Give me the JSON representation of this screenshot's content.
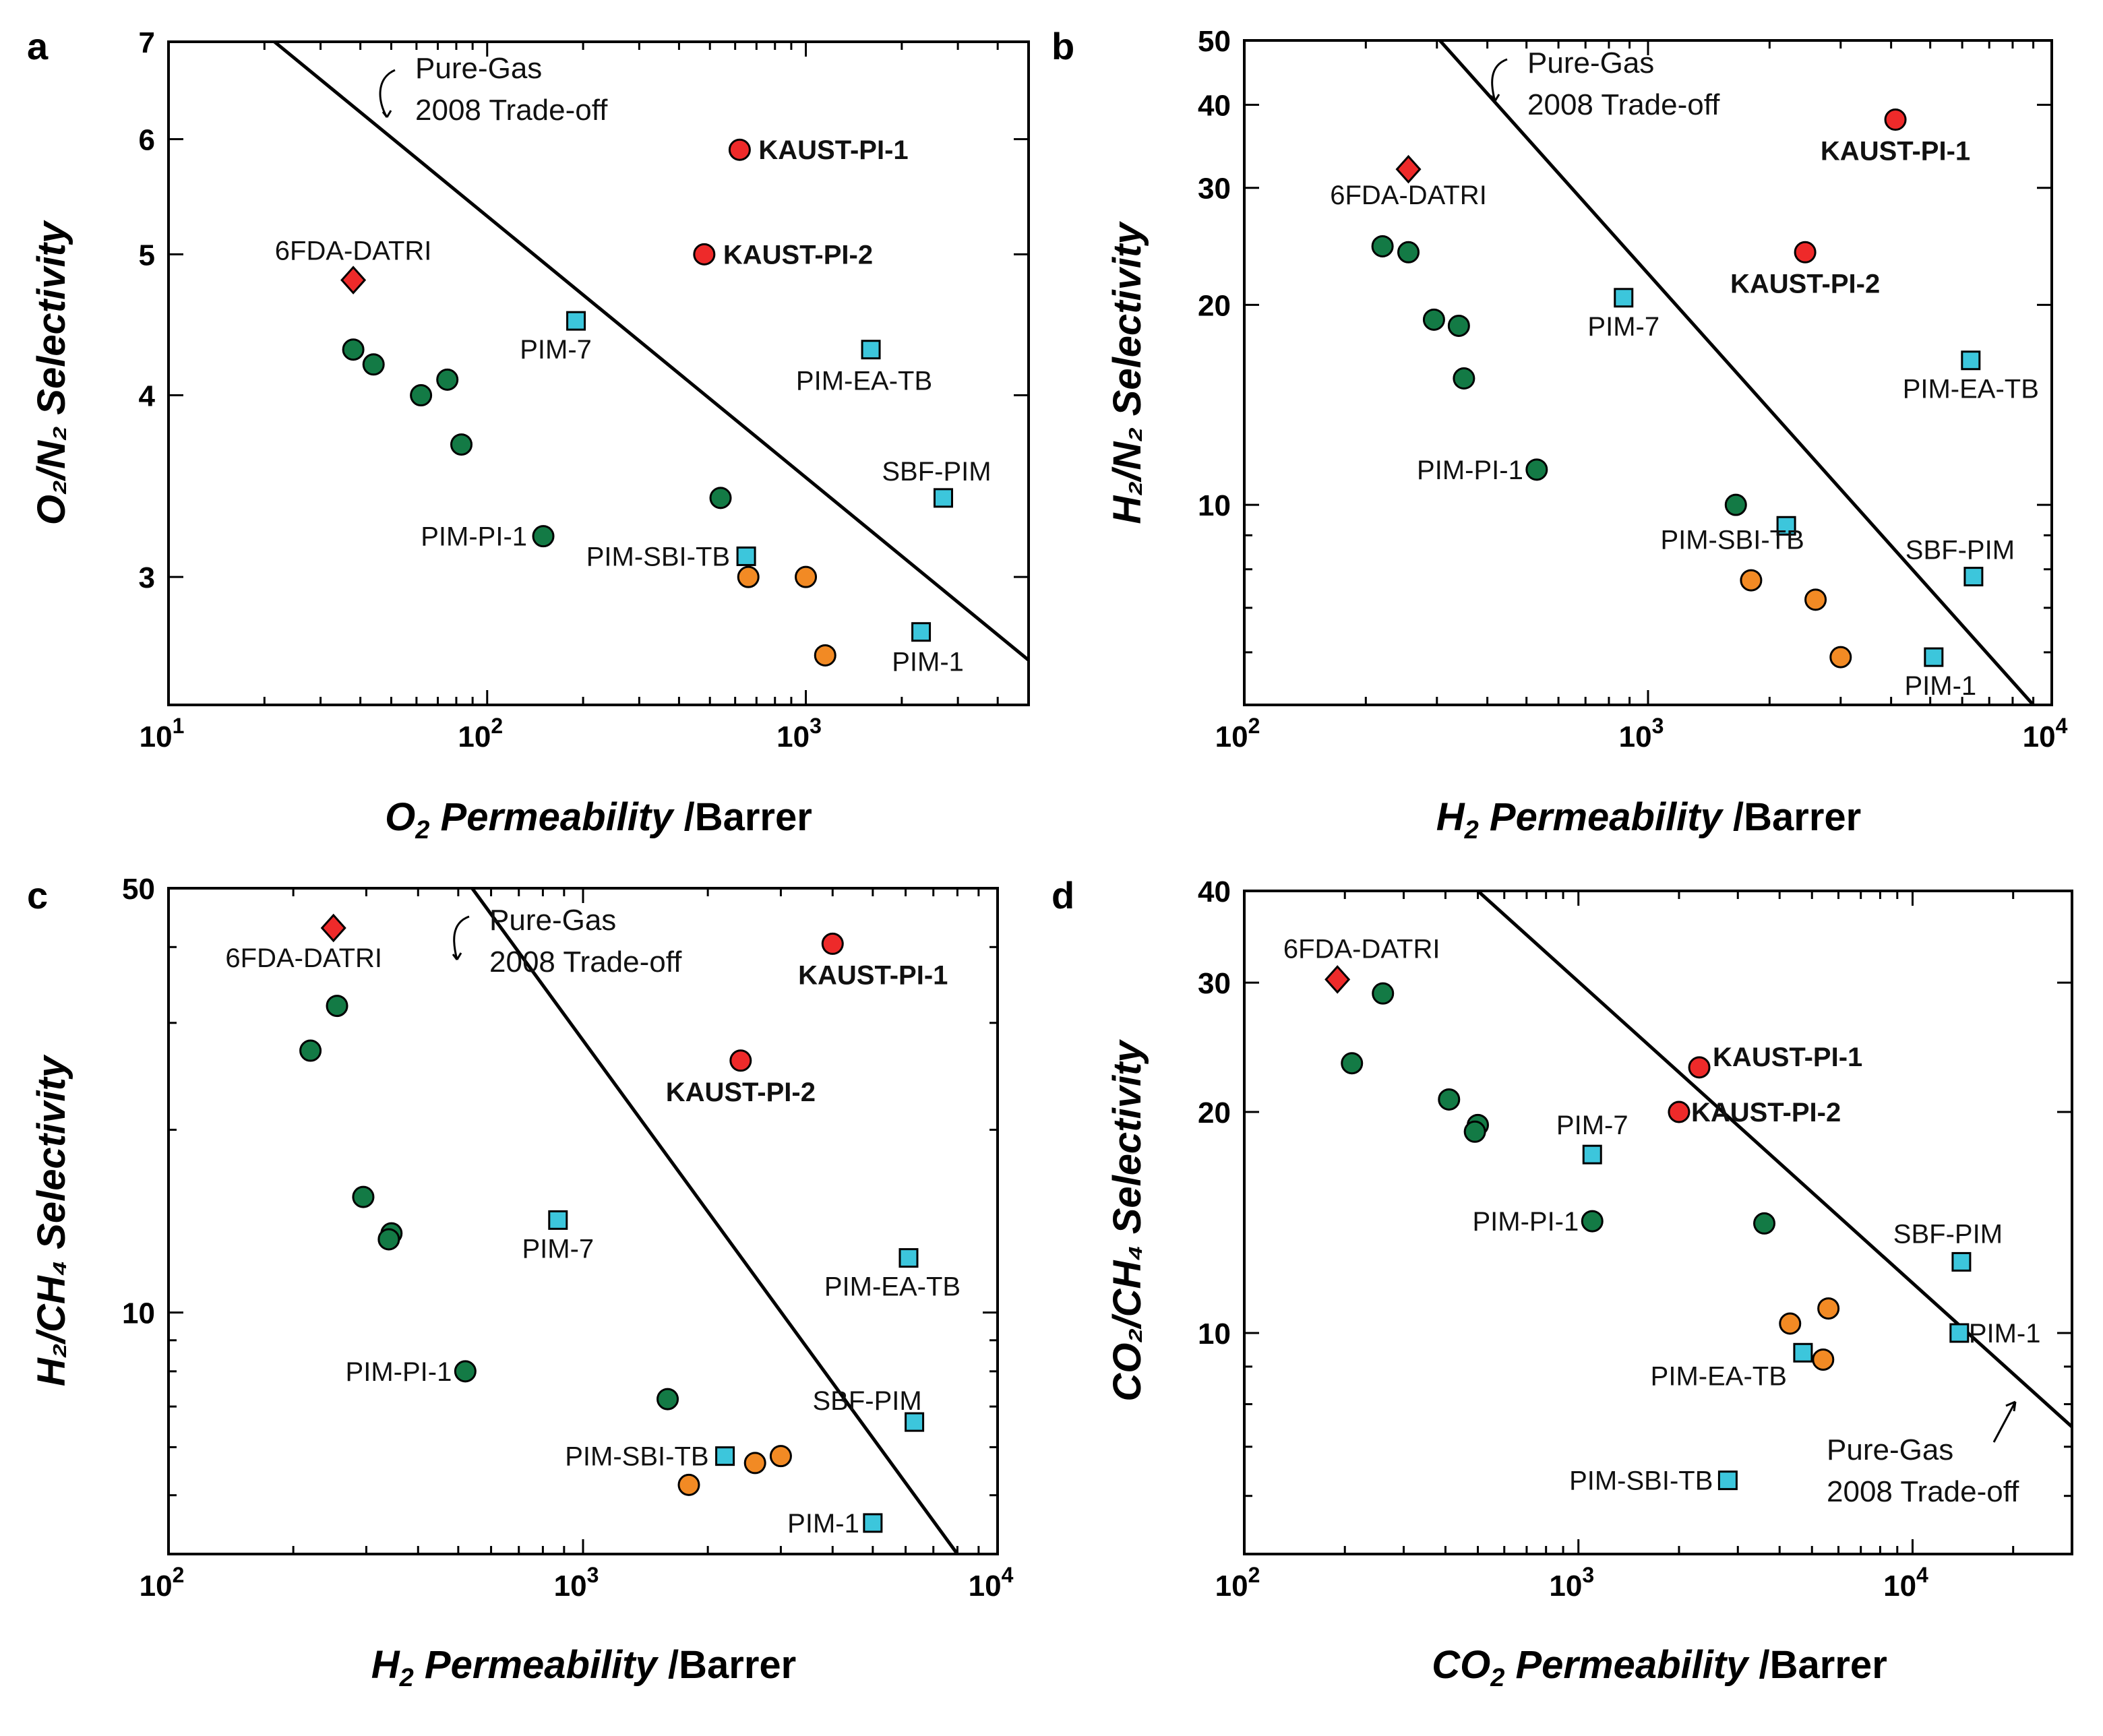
{
  "colors": {
    "kaust": "#ee2a2a",
    "datri": "#ee2a2a",
    "green": "#137a45",
    "cyan": "#3cc6dc",
    "orange": "#f28a24"
  },
  "chart_data": [
    {
      "panel": "a",
      "type": "scatter",
      "xlabel_main": "O",
      "xlabel_sub": "2",
      "xlabel_rest": " Permeability ",
      "xlabel_unit": "/Barrer",
      "ylabel": "O₂/N₂ Selectivity",
      "xscale": "log",
      "yscale": "log",
      "xlim": [
        10,
        5000
      ],
      "ylim": [
        2.45,
        7
      ],
      "xticks": [
        {
          "v": 10,
          "base": "10",
          "exp": "1"
        },
        {
          "v": 100,
          "base": "10",
          "exp": "2"
        },
        {
          "v": 1000,
          "base": "10",
          "exp": "3"
        }
      ],
      "yticks": [
        {
          "v": 3,
          "label": "3"
        },
        {
          "v": 4,
          "label": "4"
        },
        {
          "v": 5,
          "label": "5"
        },
        {
          "v": 6,
          "label": "6"
        },
        {
          "v": 7,
          "label": "7"
        }
      ],
      "tradeoff": [
        [
          21.5,
          7.0
        ],
        [
          5000,
          2.63
        ]
      ],
      "tradeoff_label": [
        "Pure-Gas",
        "2008 Trade-off"
      ],
      "points": [
        {
          "x": 620,
          "y": 5.9,
          "kind": "kaust",
          "label": "KAUST-PI-1",
          "bold": true
        },
        {
          "x": 480,
          "y": 5.0,
          "kind": "kaust",
          "label": "KAUST-PI-2",
          "bold": true
        },
        {
          "x": 38,
          "y": 4.8,
          "kind": "datri",
          "label": "6FDA-DATRI"
        },
        {
          "x": 190,
          "y": 4.5,
          "kind": "cyan",
          "label": "PIM-7"
        },
        {
          "x": 1600,
          "y": 4.3,
          "kind": "cyan",
          "label": "PIM-EA-TB"
        },
        {
          "x": 2700,
          "y": 3.4,
          "kind": "cyan",
          "label": "SBF-PIM"
        },
        {
          "x": 650,
          "y": 3.1,
          "kind": "cyan",
          "label": "PIM-SBI-TB"
        },
        {
          "x": 2300,
          "y": 2.75,
          "kind": "cyan",
          "label": "PIM-1"
        },
        {
          "x": 38,
          "y": 4.3,
          "kind": "green"
        },
        {
          "x": 44,
          "y": 4.2,
          "kind": "green"
        },
        {
          "x": 62,
          "y": 4.0,
          "kind": "green"
        },
        {
          "x": 75,
          "y": 4.1,
          "kind": "green"
        },
        {
          "x": 83,
          "y": 3.7,
          "kind": "green"
        },
        {
          "x": 150,
          "y": 3.2,
          "kind": "green",
          "label": "PIM-PI-1"
        },
        {
          "x": 540,
          "y": 3.4,
          "kind": "green"
        },
        {
          "x": 660,
          "y": 3.0,
          "kind": "orange"
        },
        {
          "x": 1000,
          "y": 3.0,
          "kind": "orange"
        },
        {
          "x": 1150,
          "y": 2.65,
          "kind": "orange"
        }
      ]
    },
    {
      "panel": "b",
      "type": "scatter",
      "xlabel_main": "H",
      "xlabel_sub": "2",
      "xlabel_rest": " Permeability ",
      "xlabel_unit": "/Barrer",
      "ylabel": "H₂/N₂ Selectivity",
      "xscale": "log",
      "yscale": "log",
      "xlim": [
        100,
        10000
      ],
      "ylim": [
        5.0,
        50
      ],
      "xticks": [
        {
          "v": 100,
          "base": "10",
          "exp": "2"
        },
        {
          "v": 1000,
          "base": "10",
          "exp": "3"
        },
        {
          "v": 10000,
          "base": "10",
          "exp": "4"
        }
      ],
      "yticks": [
        {
          "v": 10,
          "label": "10"
        },
        {
          "v": 20,
          "label": "20"
        },
        {
          "v": 30,
          "label": "30"
        },
        {
          "v": 40,
          "label": "40"
        },
        {
          "v": 50,
          "label": "50"
        }
      ],
      "tradeoff": [
        [
          305,
          50
        ],
        [
          9000,
          5.0
        ]
      ],
      "tradeoff_label": [
        "Pure-Gas",
        "2008 Trade-off"
      ],
      "points": [
        {
          "x": 4100,
          "y": 38,
          "kind": "kaust",
          "label": "KAUST-PI-1",
          "bold": true
        },
        {
          "x": 2450,
          "y": 24,
          "kind": "kaust",
          "label": "KAUST-PI-2",
          "bold": true
        },
        {
          "x": 255,
          "y": 32,
          "kind": "datri",
          "label": "6FDA-DATRI"
        },
        {
          "x": 870,
          "y": 20.5,
          "kind": "cyan",
          "label": "PIM-7"
        },
        {
          "x": 6300,
          "y": 16.5,
          "kind": "cyan",
          "label": "PIM-EA-TB"
        },
        {
          "x": 6400,
          "y": 7.8,
          "kind": "cyan",
          "label": "SBF-PIM"
        },
        {
          "x": 2200,
          "y": 9.3,
          "kind": "cyan",
          "label": "PIM-SBI-TB"
        },
        {
          "x": 5100,
          "y": 5.9,
          "kind": "cyan",
          "label": "PIM-1"
        },
        {
          "x": 220,
          "y": 24.5,
          "kind": "green"
        },
        {
          "x": 255,
          "y": 24,
          "kind": "green"
        },
        {
          "x": 295,
          "y": 19,
          "kind": "green"
        },
        {
          "x": 340,
          "y": 18.6,
          "kind": "green"
        },
        {
          "x": 350,
          "y": 15.5,
          "kind": "green"
        },
        {
          "x": 530,
          "y": 11.3,
          "kind": "green",
          "label": "PIM-PI-1"
        },
        {
          "x": 1650,
          "y": 10.0,
          "kind": "green"
        },
        {
          "x": 1800,
          "y": 7.7,
          "kind": "orange"
        },
        {
          "x": 2600,
          "y": 7.2,
          "kind": "orange"
        },
        {
          "x": 3000,
          "y": 5.9,
          "kind": "orange"
        }
      ]
    },
    {
      "panel": "c",
      "type": "scatter",
      "xlabel_main": "H",
      "xlabel_sub": "2",
      "xlabel_rest": " Permeability ",
      "xlabel_unit": "/Barrer",
      "ylabel": "H₂/CH₄ Selectivity",
      "xscale": "log",
      "yscale": "log",
      "xlim": [
        100,
        10000
      ],
      "ylim": [
        4.0,
        50
      ],
      "xticks": [
        {
          "v": 100,
          "base": "10",
          "exp": "2"
        },
        {
          "v": 1000,
          "base": "10",
          "exp": "3"
        },
        {
          "v": 10000,
          "base": "10",
          "exp": "4"
        }
      ],
      "yticks": [
        {
          "v": 10,
          "label": "10"
        },
        {
          "v": 50,
          "label": "50"
        }
      ],
      "tradeoff": [
        [
          540,
          50
        ],
        [
          8000,
          4.0
        ]
      ],
      "tradeoff_label": [
        "Pure-Gas",
        "2008 Trade-off"
      ],
      "points": [
        {
          "x": 4000,
          "y": 40.5,
          "kind": "kaust",
          "label": "KAUST-PI-1",
          "bold": true
        },
        {
          "x": 2400,
          "y": 26,
          "kind": "kaust",
          "label": "KAUST-PI-2",
          "bold": true
        },
        {
          "x": 250,
          "y": 43,
          "kind": "datri",
          "label": "6FDA-DATRI"
        },
        {
          "x": 870,
          "y": 14.2,
          "kind": "cyan",
          "label": "PIM-7"
        },
        {
          "x": 6100,
          "y": 12.3,
          "kind": "cyan",
          "label": "PIM-EA-TB"
        },
        {
          "x": 6300,
          "y": 6.6,
          "kind": "cyan",
          "label": "SBF-PIM"
        },
        {
          "x": 2200,
          "y": 5.8,
          "kind": "cyan",
          "label": "PIM-SBI-TB"
        },
        {
          "x": 5000,
          "y": 4.5,
          "kind": "cyan",
          "label": "PIM-1"
        },
        {
          "x": 220,
          "y": 27,
          "kind": "green"
        },
        {
          "x": 255,
          "y": 32,
          "kind": "green"
        },
        {
          "x": 295,
          "y": 15.5,
          "kind": "green"
        },
        {
          "x": 345,
          "y": 13.5,
          "kind": "green"
        },
        {
          "x": 340,
          "y": 13.2,
          "kind": "green"
        },
        {
          "x": 520,
          "y": 8.0,
          "kind": "green",
          "label": "PIM-PI-1"
        },
        {
          "x": 1600,
          "y": 7.2,
          "kind": "green"
        },
        {
          "x": 1800,
          "y": 5.2,
          "kind": "orange"
        },
        {
          "x": 2600,
          "y": 5.65,
          "kind": "orange"
        },
        {
          "x": 3000,
          "y": 5.8,
          "kind": "orange"
        }
      ]
    },
    {
      "panel": "d",
      "type": "scatter",
      "xlabel_main": "CO",
      "xlabel_sub": "2",
      "xlabel_rest": " Permeability ",
      "xlabel_unit": "/Barrer",
      "ylabel": "CO₂/CH₄ Selectivity",
      "xscale": "log",
      "yscale": "log",
      "xlim": [
        100,
        30000
      ],
      "ylim": [
        5.0,
        40
      ],
      "xticks": [
        {
          "v": 100,
          "base": "10",
          "exp": "2"
        },
        {
          "v": 1000,
          "base": "10",
          "exp": "3"
        },
        {
          "v": 10000,
          "base": "10",
          "exp": "4"
        }
      ],
      "yticks": [
        {
          "v": 10,
          "label": "10"
        },
        {
          "v": 20,
          "label": "20"
        },
        {
          "v": 30,
          "label": "30"
        },
        {
          "v": 40,
          "label": "40"
        }
      ],
      "tradeoff": [
        [
          500,
          40
        ],
        [
          30000,
          7.45
        ]
      ],
      "tradeoff_label": [
        "Pure-Gas",
        "2008 Trade-off"
      ],
      "points": [
        {
          "x": 2300,
          "y": 23,
          "kind": "kaust",
          "label": "KAUST-PI-1",
          "bold": true
        },
        {
          "x": 2000,
          "y": 20,
          "kind": "kaust",
          "label": "KAUST-PI-2",
          "bold": true
        },
        {
          "x": 190,
          "y": 30.3,
          "kind": "datri",
          "label": "6FDA-DATRI"
        },
        {
          "x": 1100,
          "y": 17.5,
          "kind": "cyan",
          "label": "PIM-7"
        },
        {
          "x": 14000,
          "y": 12.5,
          "kind": "cyan",
          "label": "SBF-PIM"
        },
        {
          "x": 13800,
          "y": 10.0,
          "kind": "cyan",
          "label": "PIM-1"
        },
        {
          "x": 4700,
          "y": 9.4,
          "kind": "cyan",
          "label": "PIM-EA-TB"
        },
        {
          "x": 2800,
          "y": 6.3,
          "kind": "cyan",
          "label": "PIM-SBI-TB"
        },
        {
          "x": 260,
          "y": 29,
          "kind": "green"
        },
        {
          "x": 210,
          "y": 23.3,
          "kind": "green"
        },
        {
          "x": 410,
          "y": 20.8,
          "kind": "green"
        },
        {
          "x": 500,
          "y": 19.2,
          "kind": "green"
        },
        {
          "x": 490,
          "y": 18.8,
          "kind": "green"
        },
        {
          "x": 1100,
          "y": 14.2,
          "kind": "green",
          "label": "PIM-PI-1"
        },
        {
          "x": 3600,
          "y": 14.1,
          "kind": "green"
        },
        {
          "x": 4300,
          "y": 10.3,
          "kind": "orange"
        },
        {
          "x": 5600,
          "y": 10.8,
          "kind": "orange"
        },
        {
          "x": 5400,
          "y": 9.2,
          "kind": "orange"
        }
      ]
    }
  ]
}
